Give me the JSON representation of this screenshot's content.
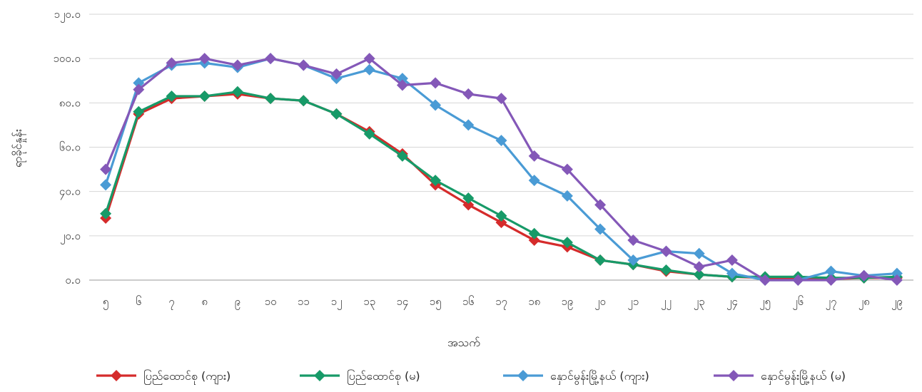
{
  "chart_data": {
    "type": "line",
    "xlabel": "အသက်",
    "ylabel": "ရာခိုင်နှုန်း",
    "categories": [
      "၅",
      "၆",
      "၇",
      "၈",
      "၉",
      "၁၀",
      "၁၁",
      "၁၂",
      "၁၃",
      "၁၄",
      "၁၅",
      "၁၆",
      "၁၇",
      "၁၈",
      "၁၉",
      "၂၀",
      "၂၁",
      "၂၂",
      "၂၃",
      "၂၄",
      "၂၅",
      "၂၆",
      "၂၇",
      "၂၈",
      "၂၉"
    ],
    "ylim": [
      0,
      120
    ],
    "yticks": [
      0,
      20,
      40,
      60,
      80,
      100,
      120
    ],
    "ytick_labels": [
      "၀.၀",
      "၂၀.၀",
      "၄၀.၀",
      "၆၀.၀",
      "၈၀.၀",
      "၁၀၀.၀",
      "၁၂၀.၀"
    ],
    "grid": true,
    "legend_position": "bottom",
    "series": [
      {
        "name": "ပြည်ထောင်စု (ကျား)",
        "color": "#d52b2b",
        "values": [
          28,
          75,
          82,
          83,
          84,
          82,
          81,
          75,
          67,
          57,
          43,
          34,
          26,
          18,
          15,
          9,
          7,
          4,
          2.5,
          1.5,
          1,
          1,
          0.5,
          1,
          1
        ]
      },
      {
        "name": "ပြည်ထောင်စု (မ)",
        "color": "#179a68",
        "values": [
          30,
          76,
          83,
          83,
          85,
          82,
          81,
          75,
          66,
          56,
          45,
          37,
          29,
          21,
          17,
          9,
          7,
          4.5,
          2.5,
          1.5,
          1.5,
          1.5,
          1,
          1,
          1.5
        ]
      },
      {
        "name": "နှောင်မွန်းမြို့နယ် (ကျား)",
        "color": "#4a9bd5",
        "values": [
          43,
          89,
          97,
          98,
          96,
          100,
          97,
          91,
          95,
          91,
          79,
          70,
          63,
          45,
          38,
          23,
          9,
          13,
          12,
          3,
          0,
          0,
          4,
          2,
          3
        ]
      },
      {
        "name": "နှောင်မွန်းမြို့နယ် (မ)",
        "color": "#8458b8",
        "values": [
          50,
          86,
          98,
          100,
          97,
          100,
          97,
          93,
          100,
          88,
          89,
          84,
          82,
          56,
          50,
          34,
          18,
          13,
          6,
          9,
          0,
          0,
          0,
          2,
          0
        ]
      }
    ]
  }
}
